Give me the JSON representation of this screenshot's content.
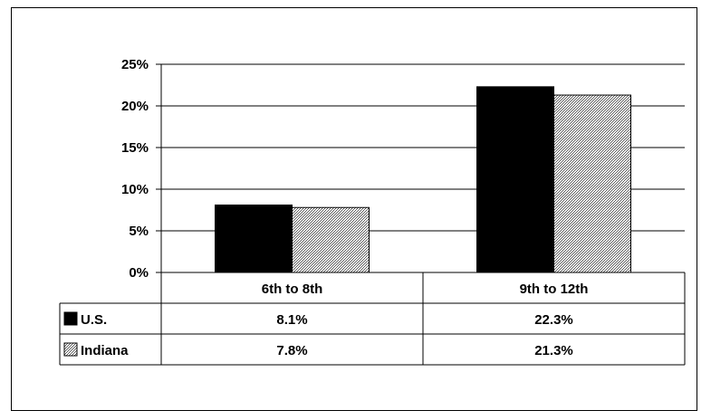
{
  "chart_data": {
    "type": "bar",
    "categories": [
      "6th to 8th",
      "9th to 12th"
    ],
    "series": [
      {
        "name": "U.S.",
        "values": [
          8.1,
          22.3
        ],
        "labels": [
          "8.1%",
          "22.3%"
        ],
        "color": "#000000",
        "fill": "solid"
      },
      {
        "name": "Indiana",
        "values": [
          7.8,
          21.3
        ],
        "labels": [
          "7.8%",
          "21.3%"
        ],
        "color": "#b8b8b8",
        "fill": "crosshatch"
      }
    ],
    "y_ticks": [
      "0%",
      "5%",
      "10%",
      "15%",
      "20%",
      "25%"
    ],
    "ylim": [
      0,
      25
    ],
    "grid": true,
    "legend": "data-table-rows"
  }
}
